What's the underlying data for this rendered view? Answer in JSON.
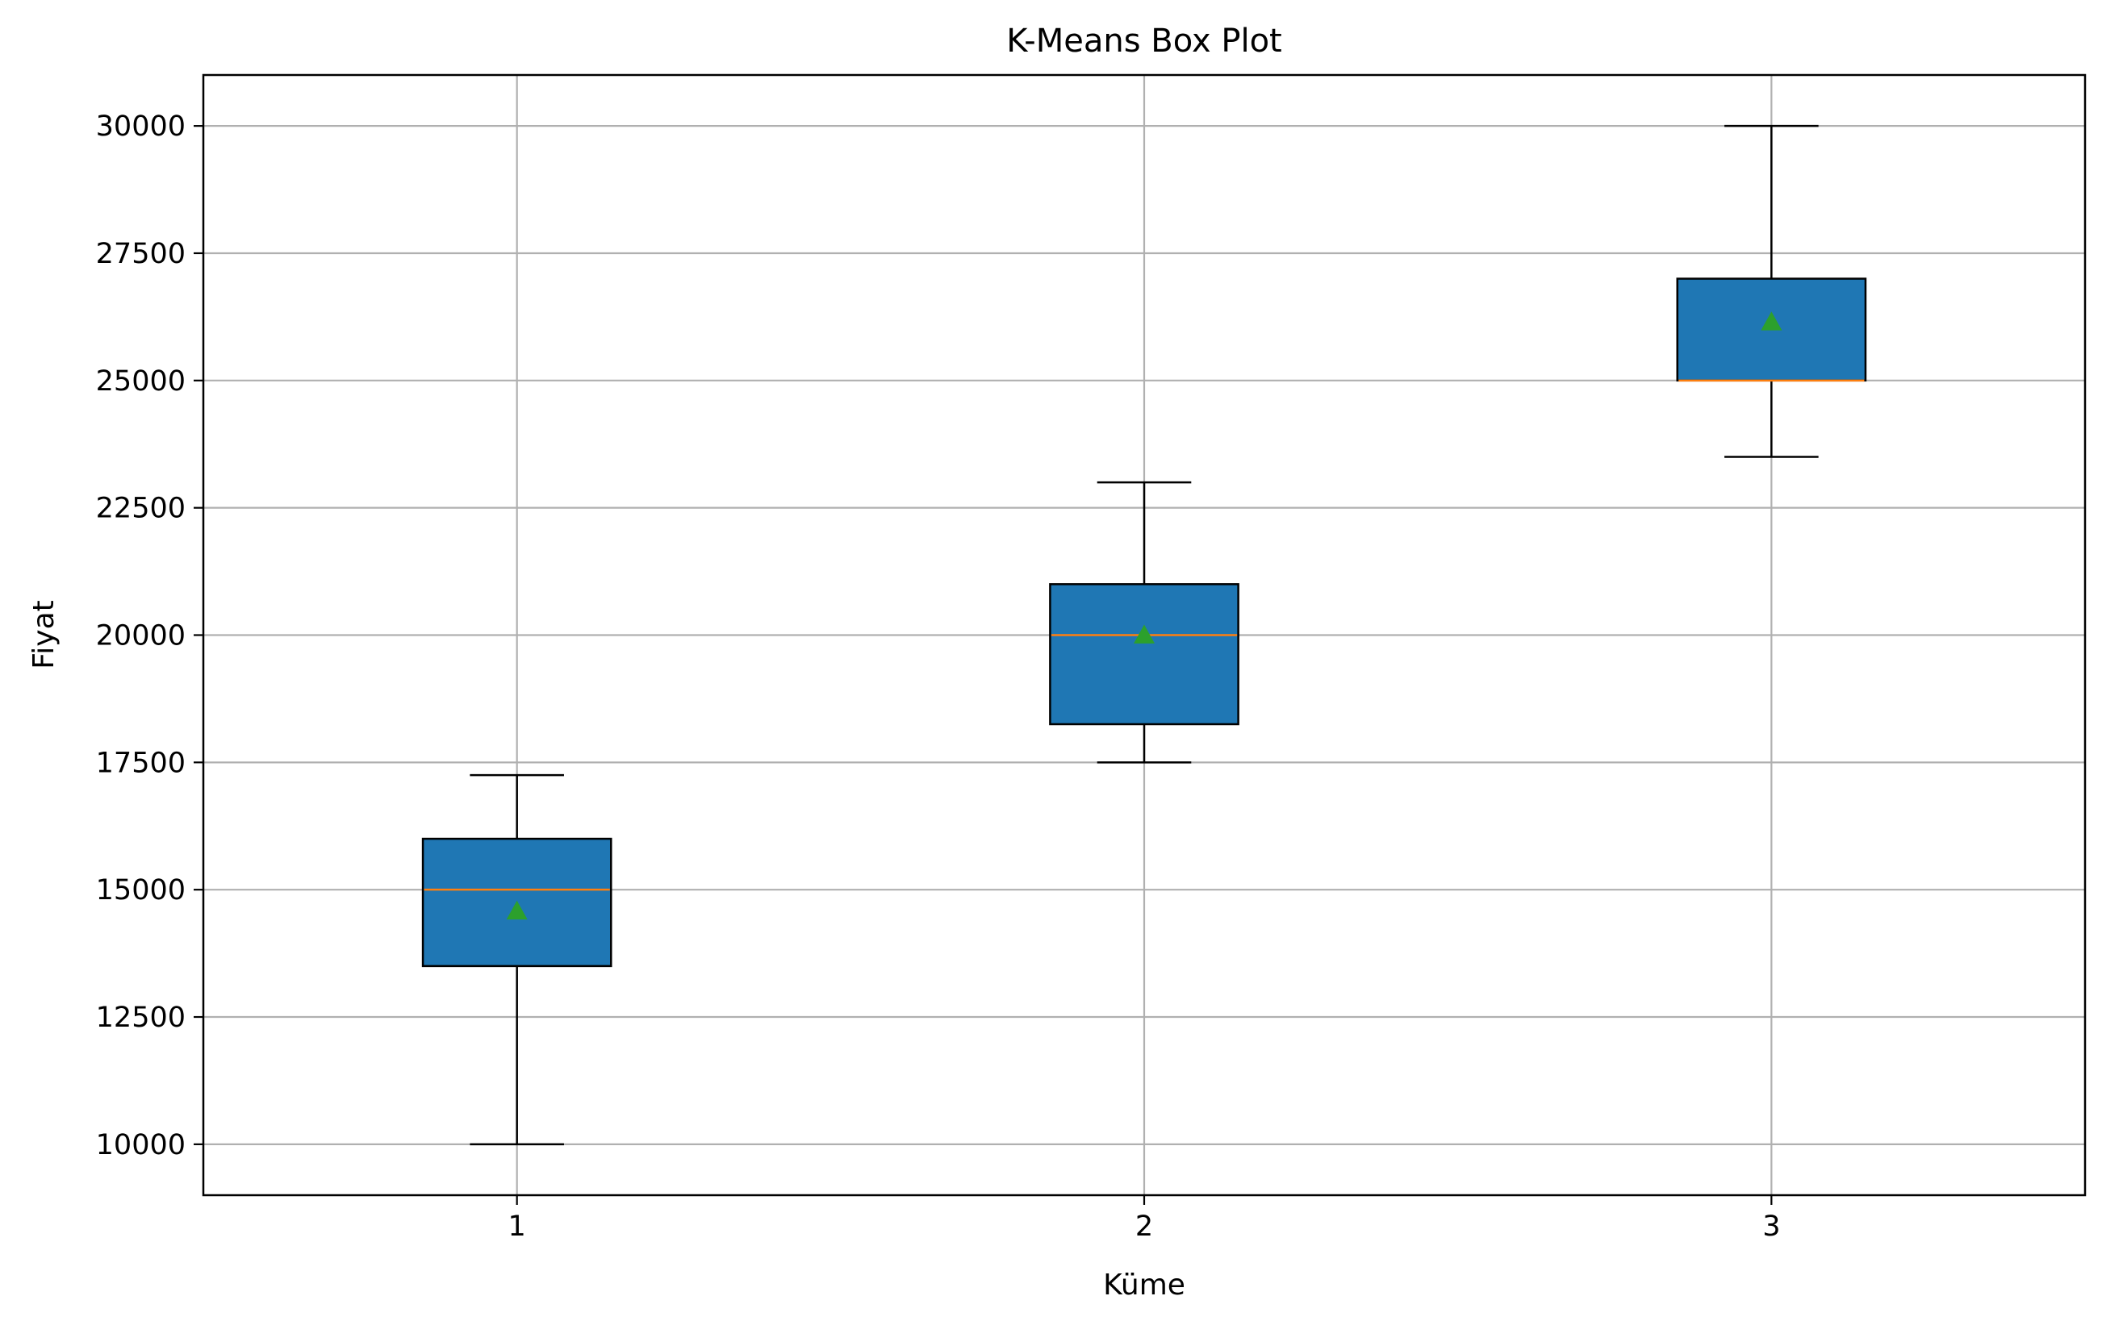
{
  "chart_data": {
    "type": "box",
    "title": "K-Means Box Plot",
    "xlabel": "Küme",
    "ylabel": "Fiyat",
    "categories": [
      "1",
      "2",
      "3"
    ],
    "boxes": [
      {
        "category": "1",
        "whisker_low": 10000,
        "q1": 13500,
        "median": 15000,
        "q3": 16000,
        "whisker_high": 17250,
        "mean": 14580
      },
      {
        "category": "2",
        "whisker_low": 17500,
        "q1": 18250,
        "median": 20000,
        "q3": 21000,
        "whisker_high": 23000,
        "mean": 20000
      },
      {
        "category": "3",
        "whisker_low": 23500,
        "q1": 25000,
        "median": 25000,
        "q3": 27000,
        "whisker_high": 30000,
        "mean": 26150
      }
    ],
    "yticks": [
      10000,
      12500,
      15000,
      17500,
      20000,
      22500,
      25000,
      27500,
      30000
    ],
    "ylim": [
      9000,
      31000
    ],
    "xlim": [
      0.5,
      3.5
    ],
    "grid": true,
    "colors": {
      "box_fill": "#1f77b4",
      "median": "#ff7f0e",
      "mean_marker": "#2ca02c",
      "grid": "#b0b0b0",
      "edge": "#000000"
    }
  }
}
